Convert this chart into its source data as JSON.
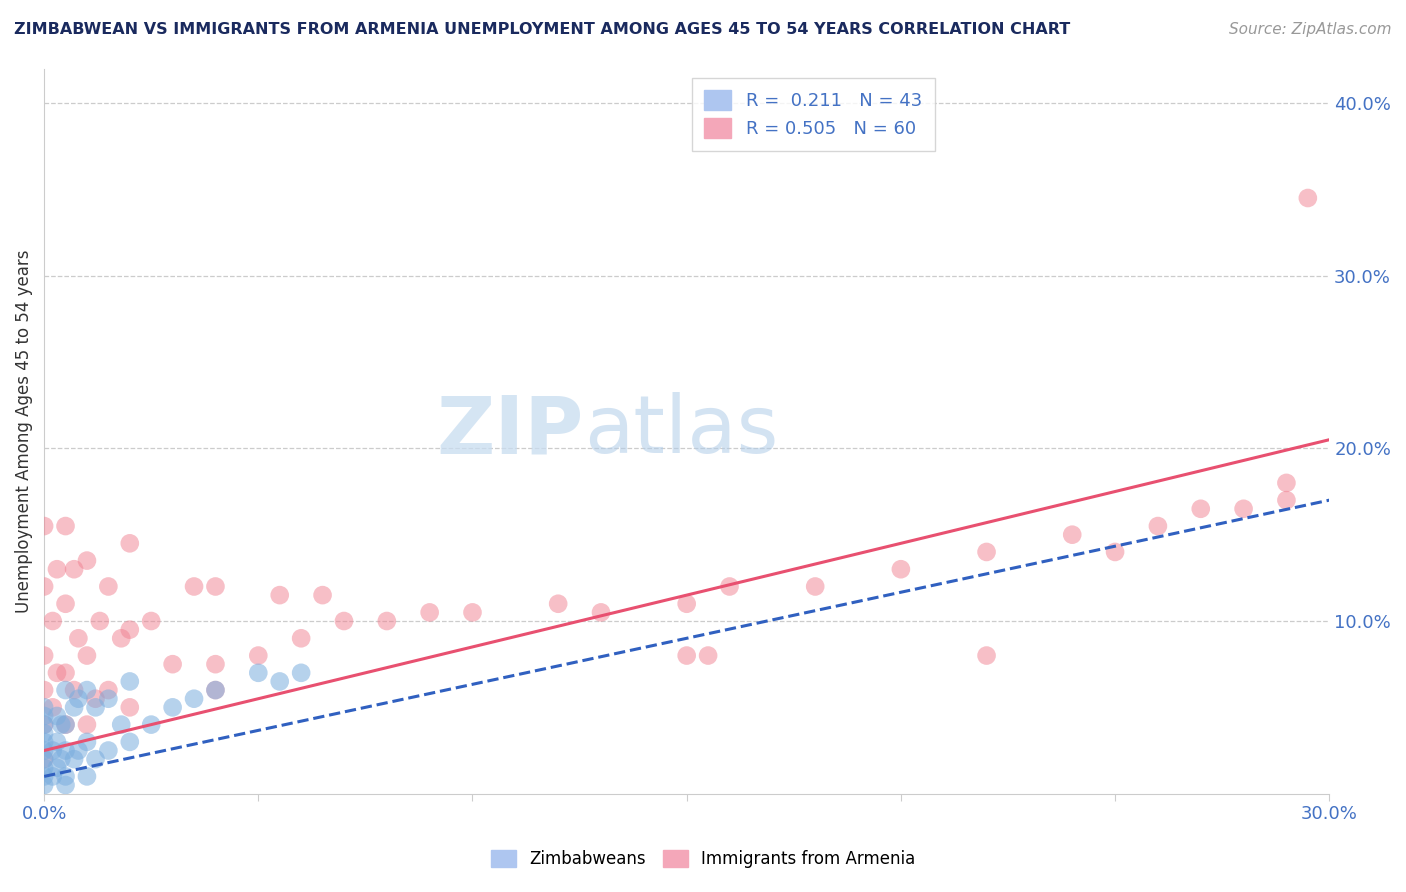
{
  "title": "ZIMBABWEAN VS IMMIGRANTS FROM ARMENIA UNEMPLOYMENT AMONG AGES 45 TO 54 YEARS CORRELATION CHART",
  "source_text": "Source: ZipAtlas.com",
  "ylabel": "Unemployment Among Ages 45 to 54 years",
  "xlim": [
    0.0,
    0.3
  ],
  "ylim": [
    0.0,
    0.42
  ],
  "zimbabwean_color": "#7aadde",
  "armenia_color": "#f08090",
  "zimbabwean_line_color": "#3060c0",
  "armenia_line_color": "#e85070",
  "watermark_zip": "ZIP",
  "watermark_atlas": "atlas",
  "zim_scatter_x": [
    0.0,
    0.0,
    0.0,
    0.0,
    0.0,
    0.0,
    0.0,
    0.0,
    0.0,
    0.0,
    0.002,
    0.002,
    0.003,
    0.003,
    0.003,
    0.004,
    0.004,
    0.005,
    0.005,
    0.005,
    0.005,
    0.005,
    0.007,
    0.007,
    0.008,
    0.008,
    0.01,
    0.01,
    0.01,
    0.012,
    0.012,
    0.015,
    0.015,
    0.018,
    0.02,
    0.02,
    0.025,
    0.03,
    0.035,
    0.04,
    0.05,
    0.055,
    0.06
  ],
  "zim_scatter_y": [
    0.005,
    0.01,
    0.015,
    0.02,
    0.025,
    0.03,
    0.035,
    0.04,
    0.045,
    0.05,
    0.01,
    0.025,
    0.015,
    0.03,
    0.045,
    0.02,
    0.04,
    0.005,
    0.01,
    0.025,
    0.04,
    0.06,
    0.02,
    0.05,
    0.025,
    0.055,
    0.01,
    0.03,
    0.06,
    0.02,
    0.05,
    0.025,
    0.055,
    0.04,
    0.03,
    0.065,
    0.04,
    0.05,
    0.055,
    0.06,
    0.07,
    0.065,
    0.07
  ],
  "arm_scatter_x": [
    0.0,
    0.0,
    0.0,
    0.0,
    0.0,
    0.0,
    0.002,
    0.002,
    0.003,
    0.003,
    0.005,
    0.005,
    0.005,
    0.005,
    0.007,
    0.007,
    0.008,
    0.01,
    0.01,
    0.01,
    0.012,
    0.013,
    0.015,
    0.015,
    0.018,
    0.02,
    0.02,
    0.02,
    0.025,
    0.03,
    0.035,
    0.04,
    0.04,
    0.05,
    0.055,
    0.06,
    0.065,
    0.07,
    0.08,
    0.09,
    0.1,
    0.12,
    0.13,
    0.15,
    0.16,
    0.18,
    0.2,
    0.22,
    0.24,
    0.25,
    0.26,
    0.27,
    0.28,
    0.29,
    0.29,
    0.295,
    0.04,
    0.15,
    0.155,
    0.22
  ],
  "arm_scatter_y": [
    0.02,
    0.04,
    0.06,
    0.08,
    0.12,
    0.155,
    0.05,
    0.1,
    0.07,
    0.13,
    0.04,
    0.07,
    0.11,
    0.155,
    0.06,
    0.13,
    0.09,
    0.04,
    0.08,
    0.135,
    0.055,
    0.1,
    0.06,
    0.12,
    0.09,
    0.05,
    0.095,
    0.145,
    0.1,
    0.075,
    0.12,
    0.06,
    0.12,
    0.08,
    0.115,
    0.09,
    0.115,
    0.1,
    0.1,
    0.105,
    0.105,
    0.11,
    0.105,
    0.11,
    0.12,
    0.12,
    0.13,
    0.14,
    0.15,
    0.14,
    0.155,
    0.165,
    0.165,
    0.17,
    0.18,
    0.345,
    0.075,
    0.08,
    0.08,
    0.08
  ],
  "zim_line_x0": 0.0,
  "zim_line_y0": 0.01,
  "zim_line_x1": 0.3,
  "zim_line_y1": 0.17,
  "arm_line_x0": 0.0,
  "arm_line_y0": 0.025,
  "arm_line_x1": 0.3,
  "arm_line_y1": 0.205
}
